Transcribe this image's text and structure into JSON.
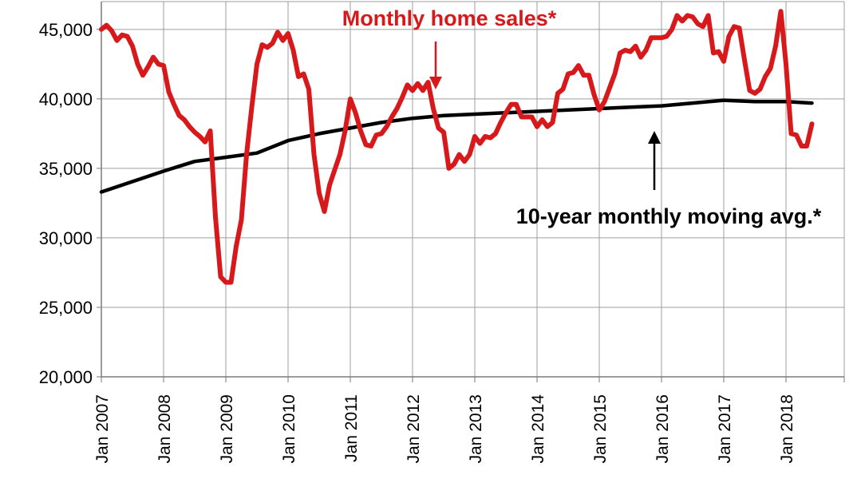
{
  "chart_data": {
    "type": "line",
    "title": "",
    "xlabel": "",
    "ylabel": "",
    "ylim": [
      20000,
      47000
    ],
    "grid": true,
    "y_ticks": [
      "20,000",
      "25,000",
      "30,000",
      "35,000",
      "40,000",
      "45,000"
    ],
    "y_tick_values": [
      20000,
      25000,
      30000,
      35000,
      40000,
      45000
    ],
    "x_ticks": [
      "Jan 2007",
      "Jan 2008",
      "Jan 2009",
      "Jan 2010",
      "Jan 2011",
      "Jan 2012",
      "Jan 2013",
      "Jan 2014",
      "Jan 2015",
      "Jan 2016",
      "Jan 2017",
      "Jan 2018"
    ],
    "x_start": "2007-01",
    "x_end": "2018-07",
    "series": [
      {
        "name": "Monthly home sales*",
        "color": "#d7191c",
        "points": [
          [
            "2007-01",
            45000
          ],
          [
            "2007-02",
            45300
          ],
          [
            "2007-03",
            44900
          ],
          [
            "2007-04",
            44200
          ],
          [
            "2007-05",
            44600
          ],
          [
            "2007-06",
            44500
          ],
          [
            "2007-07",
            43800
          ],
          [
            "2007-08",
            42500
          ],
          [
            "2007-09",
            41700
          ],
          [
            "2007-10",
            42300
          ],
          [
            "2007-11",
            43000
          ],
          [
            "2007-12",
            42500
          ],
          [
            "2008-01",
            42400
          ],
          [
            "2008-02",
            40500
          ],
          [
            "2008-03",
            39600
          ],
          [
            "2008-04",
            38800
          ],
          [
            "2008-05",
            38500
          ],
          [
            "2008-06",
            38000
          ],
          [
            "2008-07",
            37600
          ],
          [
            "2008-08",
            37300
          ],
          [
            "2008-09",
            36900
          ],
          [
            "2008-10",
            37700
          ],
          [
            "2008-11",
            31500
          ],
          [
            "2008-12",
            27200
          ],
          [
            "2009-01",
            26800
          ],
          [
            "2009-02",
            26800
          ],
          [
            "2009-03",
            29400
          ],
          [
            "2009-04",
            31300
          ],
          [
            "2009-05",
            36000
          ],
          [
            "2009-06",
            39400
          ],
          [
            "2009-07",
            42500
          ],
          [
            "2009-08",
            43900
          ],
          [
            "2009-09",
            43700
          ],
          [
            "2009-10",
            44000
          ],
          [
            "2009-11",
            44800
          ],
          [
            "2009-12",
            44200
          ],
          [
            "2010-01",
            44700
          ],
          [
            "2010-02",
            43500
          ],
          [
            "2010-03",
            41600
          ],
          [
            "2010-04",
            41800
          ],
          [
            "2010-05",
            40700
          ],
          [
            "2010-06",
            36000
          ],
          [
            "2010-07",
            33200
          ],
          [
            "2010-08",
            31900
          ],
          [
            "2010-09",
            33800
          ],
          [
            "2010-10",
            34900
          ],
          [
            "2010-11",
            36000
          ],
          [
            "2010-12",
            37700
          ],
          [
            "2011-01",
            40000
          ],
          [
            "2011-02",
            39000
          ],
          [
            "2011-03",
            37700
          ],
          [
            "2011-04",
            36700
          ],
          [
            "2011-05",
            36600
          ],
          [
            "2011-06",
            37400
          ],
          [
            "2011-07",
            37500
          ],
          [
            "2011-08",
            38000
          ],
          [
            "2011-09",
            38700
          ],
          [
            "2011-10",
            39300
          ],
          [
            "2011-11",
            40100
          ],
          [
            "2011-12",
            41000
          ],
          [
            "2012-01",
            40600
          ],
          [
            "2012-02",
            41100
          ],
          [
            "2012-03",
            40600
          ],
          [
            "2012-04",
            41200
          ],
          [
            "2012-05",
            39300
          ],
          [
            "2012-06",
            37900
          ],
          [
            "2012-07",
            37600
          ],
          [
            "2012-08",
            35000
          ],
          [
            "2012-09",
            35300
          ],
          [
            "2012-10",
            36000
          ],
          [
            "2012-11",
            35500
          ],
          [
            "2012-12",
            36000
          ],
          [
            "2013-01",
            37300
          ],
          [
            "2013-02",
            36800
          ],
          [
            "2013-03",
            37300
          ],
          [
            "2013-04",
            37200
          ],
          [
            "2013-05",
            37500
          ],
          [
            "2013-06",
            38300
          ],
          [
            "2013-07",
            39000
          ],
          [
            "2013-08",
            39600
          ],
          [
            "2013-09",
            39600
          ],
          [
            "2013-10",
            38700
          ],
          [
            "2013-11",
            38700
          ],
          [
            "2013-12",
            38700
          ],
          [
            "2014-01",
            38000
          ],
          [
            "2014-02",
            38500
          ],
          [
            "2014-03",
            38000
          ],
          [
            "2014-04",
            38300
          ],
          [
            "2014-05",
            40400
          ],
          [
            "2014-06",
            40700
          ],
          [
            "2014-07",
            41800
          ],
          [
            "2014-08",
            41900
          ],
          [
            "2014-09",
            42400
          ],
          [
            "2014-10",
            41700
          ],
          [
            "2014-11",
            41700
          ],
          [
            "2014-12",
            40300
          ],
          [
            "2015-01",
            39200
          ],
          [
            "2015-02",
            39800
          ],
          [
            "2015-03",
            40800
          ],
          [
            "2015-04",
            41800
          ],
          [
            "2015-05",
            43300
          ],
          [
            "2015-06",
            43500
          ],
          [
            "2015-07",
            43400
          ],
          [
            "2015-08",
            43800
          ],
          [
            "2015-09",
            43000
          ],
          [
            "2015-10",
            43500
          ],
          [
            "2015-11",
            44400
          ],
          [
            "2015-12",
            44400
          ],
          [
            "2016-01",
            44400
          ],
          [
            "2016-02",
            44500
          ],
          [
            "2016-03",
            45000
          ],
          [
            "2016-04",
            46000
          ],
          [
            "2016-05",
            45600
          ],
          [
            "2016-06",
            46000
          ],
          [
            "2016-07",
            45900
          ],
          [
            "2016-08",
            45400
          ],
          [
            "2016-09",
            45200
          ],
          [
            "2016-10",
            46000
          ],
          [
            "2016-11",
            43300
          ],
          [
            "2016-12",
            43400
          ],
          [
            "2017-01",
            42700
          ],
          [
            "2017-02",
            44500
          ],
          [
            "2017-03",
            45200
          ],
          [
            "2017-04",
            45100
          ],
          [
            "2017-05",
            42800
          ],
          [
            "2017-06",
            40600
          ],
          [
            "2017-07",
            40400
          ],
          [
            "2017-08",
            40700
          ],
          [
            "2017-09",
            41600
          ],
          [
            "2017-10",
            42200
          ],
          [
            "2017-11",
            43800
          ],
          [
            "2017-12",
            46300
          ],
          [
            "2018-01",
            42500
          ],
          [
            "2018-02",
            37500
          ],
          [
            "2018-03",
            37400
          ],
          [
            "2018-04",
            36600
          ],
          [
            "2018-05",
            36600
          ],
          [
            "2018-06",
            38200
          ]
        ]
      },
      {
        "name": "10-year monthly moving avg.*",
        "color": "#000000",
        "points": [
          [
            "2007-01",
            33300
          ],
          [
            "2008-01",
            34800
          ],
          [
            "2008-07",
            35500
          ],
          [
            "2009-01",
            35800
          ],
          [
            "2009-07",
            36100
          ],
          [
            "2010-01",
            37000
          ],
          [
            "2010-07",
            37500
          ],
          [
            "2011-01",
            37900
          ],
          [
            "2011-07",
            38300
          ],
          [
            "2012-01",
            38600
          ],
          [
            "2012-07",
            38800
          ],
          [
            "2013-01",
            38900
          ],
          [
            "2014-01",
            39100
          ],
          [
            "2015-01",
            39300
          ],
          [
            "2015-07",
            39400
          ],
          [
            "2016-01",
            39500
          ],
          [
            "2016-07",
            39700
          ],
          [
            "2017-01",
            39900
          ],
          [
            "2017-07",
            39800
          ],
          [
            "2018-01",
            39800
          ],
          [
            "2018-06",
            39700
          ]
        ]
      }
    ],
    "annotations": [
      {
        "text": "Monthly home sales*",
        "color": "#d7191c",
        "target_date": "2012-06",
        "target_value": 41200
      },
      {
        "text": "10-year monthly moving avg.*",
        "color": "#000000",
        "target_date": "2015-12",
        "target_value": 39600
      }
    ]
  }
}
